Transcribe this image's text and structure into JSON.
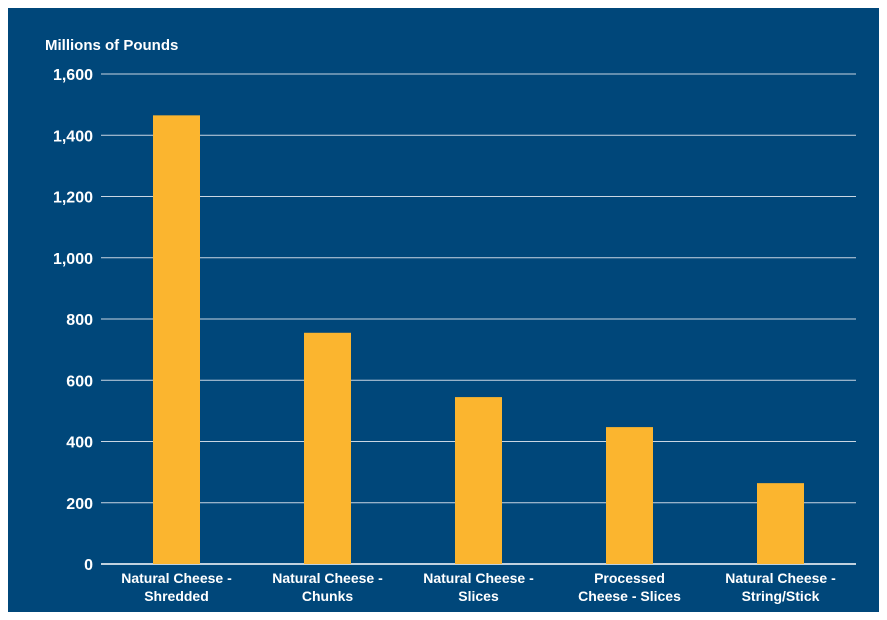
{
  "chart_data": {
    "type": "bar",
    "title": "",
    "ylabel": "Millions of Pounds",
    "xlabel": "",
    "categories": [
      [
        "Natural Cheese -",
        "Shredded"
      ],
      [
        "Natural Cheese -",
        "Chunks"
      ],
      [
        "Natural Cheese -",
        "Slices"
      ],
      [
        "Processed",
        "Cheese - Slices"
      ],
      [
        "Natural Cheese -",
        "String/Stick"
      ]
    ],
    "values": [
      1465,
      755,
      545,
      447,
      264
    ],
    "ylim": [
      0,
      1600
    ],
    "yticks": [
      0,
      200,
      400,
      600,
      800,
      1000,
      1200,
      1400,
      1600
    ],
    "ytick_labels": [
      "0",
      "200",
      "400",
      "600",
      "800",
      "1,000",
      "1,200",
      "1,400",
      "1,600"
    ],
    "grid": true,
    "colors": {
      "background": "#00477a",
      "bar": "#fbb52f",
      "grid": "#c9d6e3",
      "text": "#ffffff"
    }
  }
}
